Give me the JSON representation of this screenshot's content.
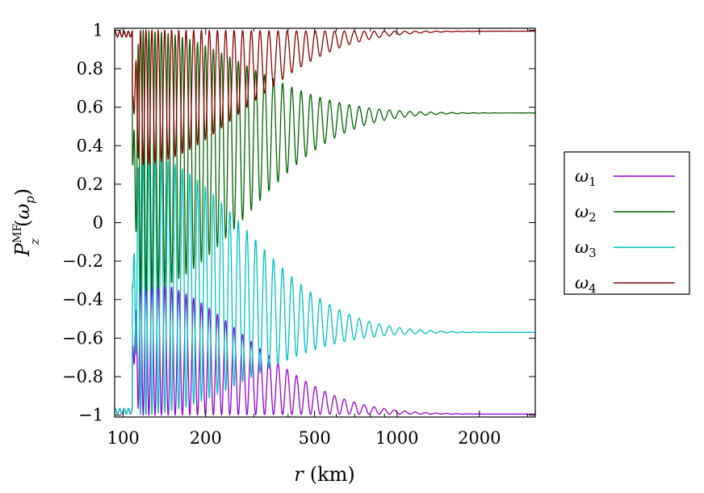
{
  "chart_data": {
    "type": "line",
    "x_scale": "log",
    "xlabel_var": "r",
    "xlabel_unit": "(km)",
    "ylabel_main": "P",
    "ylabel_sup": "MF",
    "ylabel_sub": "z",
    "ylabel_arg_open": "(",
    "ylabel_arg": "ω",
    "ylabel_arg_sub": "p",
    "ylabel_arg_close": ")",
    "xlim": [
      93,
      3200
    ],
    "ylim": [
      -1.01,
      1.01
    ],
    "x_ticks": [
      100,
      200,
      500,
      1000,
      2000
    ],
    "x_tick_labels": [
      "100",
      "200",
      "500",
      "1000",
      "2000"
    ],
    "y_ticks": [
      1,
      0.8,
      0.6,
      0.4,
      0.2,
      0,
      -0.2,
      -0.4,
      -0.6,
      -0.8,
      -1
    ],
    "y_tick_labels": [
      "1",
      "0.8",
      "0.6",
      "0.4",
      "0.2",
      "0",
      "−0.2",
      "−0.4",
      "−0.6",
      "−0.8",
      "−1"
    ],
    "grid": false,
    "legend_position": "right-outside",
    "oscillation_onset_km": 108,
    "series": [
      {
        "name": "ω",
        "sub": "1",
        "color": "#9400d3",
        "start": -0.98,
        "final": -0.995,
        "envelope_top": -0.3,
        "envelope_bottom": -1.0
      },
      {
        "name": "ω",
        "sub": "2",
        "color": "#006400",
        "start": 0.98,
        "final": 0.57,
        "envelope_top": 1.0,
        "envelope_bottom": -0.36
      },
      {
        "name": "ω",
        "sub": "3",
        "color": "#00bfbf",
        "start": -0.98,
        "final": -0.57,
        "envelope_top": 0.36,
        "envelope_bottom": -1.0
      },
      {
        "name": "ω",
        "sub": "4",
        "color": "#8b0000",
        "start": 0.98,
        "final": 0.995,
        "envelope_top": 1.0,
        "envelope_bottom": 0.3
      }
    ]
  }
}
